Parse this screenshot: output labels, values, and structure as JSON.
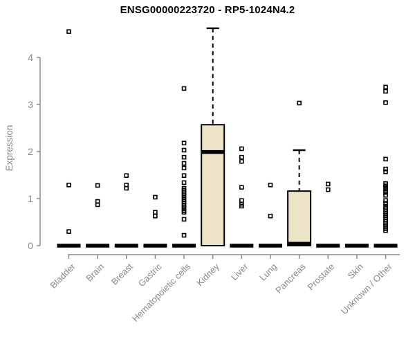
{
  "chart_data": {
    "type": "box",
    "title": "ENSG00000223720 - RP5-1024N4.2",
    "ylabel": "Expression",
    "xlabel": "",
    "ylim": [
      0,
      4.7
    ],
    "yticks": [
      0,
      1,
      2,
      3,
      4
    ],
    "grid": false,
    "legend": "none",
    "categories": [
      "Bladder",
      "Brain",
      "Breast",
      "Gastric",
      "Hematopoietic cells",
      "Kidney",
      "Liver",
      "Lung",
      "Pancreas",
      "Prostate",
      "Skin",
      "Unknown / Other"
    ],
    "boxes": [
      {
        "category": "Bladder",
        "q1": 0,
        "median": 0,
        "q3": 0,
        "whisker_low": 0,
        "whisker_high": 0,
        "outliers": [
          4.55,
          1.29,
          0.3
        ]
      },
      {
        "category": "Brain",
        "q1": 0,
        "median": 0,
        "q3": 0,
        "whisker_low": 0,
        "whisker_high": 0,
        "outliers": [
          1.28,
          0.94,
          0.87
        ]
      },
      {
        "category": "Breast",
        "q1": 0,
        "median": 0,
        "q3": 0,
        "whisker_low": 0,
        "whisker_high": 0,
        "outliers": [
          1.49,
          1.29,
          1.22
        ]
      },
      {
        "category": "Gastric",
        "q1": 0,
        "median": 0,
        "q3": 0,
        "whisker_low": 0,
        "whisker_high": 0,
        "outliers": [
          1.03,
          0.71,
          0.63
        ]
      },
      {
        "category": "Hematopoietic cells",
        "q1": 0,
        "median": 0,
        "q3": 0,
        "whisker_low": 0,
        "whisker_high": 0,
        "outliers": [
          3.34,
          2.18,
          2.03,
          1.88,
          1.75,
          1.65,
          1.49,
          1.34,
          1.22,
          1.18,
          1.14,
          1.1,
          1.06,
          1.02,
          0.98,
          0.94,
          0.9,
          0.86,
          0.82,
          0.78,
          0.74,
          0.71,
          0.56,
          0.22
        ]
      },
      {
        "category": "Kidney",
        "q1": 0,
        "median": 1.99,
        "q3": 2.57,
        "whisker_low": 0,
        "whisker_high": 4.62,
        "outliers": []
      },
      {
        "category": "Liver",
        "q1": 0,
        "median": 0,
        "q3": 0,
        "whisker_low": 0,
        "whisker_high": 0,
        "outliers": [
          2.06,
          1.88,
          1.79,
          1.24,
          0.96,
          0.88,
          0.84
        ]
      },
      {
        "category": "Lung",
        "q1": 0,
        "median": 0,
        "q3": 0,
        "whisker_low": 0,
        "whisker_high": 0,
        "outliers": [
          1.29,
          0.63
        ]
      },
      {
        "category": "Pancreas",
        "q1": 0,
        "median": 0.04,
        "q3": 1.16,
        "whisker_low": 0,
        "whisker_high": 2.03,
        "outliers": [
          3.03
        ]
      },
      {
        "category": "Prostate",
        "q1": 0,
        "median": 0,
        "q3": 0,
        "whisker_low": 0,
        "whisker_high": 0,
        "outliers": [
          1.31,
          1.19
        ]
      },
      {
        "category": "Skin",
        "q1": 0,
        "median": 0,
        "q3": 0,
        "whisker_low": 0,
        "whisker_high": 0,
        "outliers": []
      },
      {
        "category": "Unknown / Other",
        "q1": 0,
        "median": 0,
        "q3": 0,
        "whisker_low": 0,
        "whisker_high": 0,
        "outliers": [
          3.37,
          3.28,
          3.04,
          1.84,
          1.63,
          1.57,
          1.32,
          1.27,
          1.22,
          1.17,
          1.13,
          1.07,
          0.96,
          0.9,
          0.84,
          0.8,
          0.76,
          0.72,
          0.68,
          0.64,
          0.6,
          0.56,
          0.52,
          0.48,
          0.44,
          0.4,
          0.36,
          0.32
        ]
      }
    ],
    "colors": {
      "box_fill": "#EDE4C8",
      "box_stroke": "#000000",
      "median": "#000000",
      "whisker": "#000000",
      "outlier": "#000000",
      "axis": "#8A8A8A",
      "tick_label": "#8A8A8A",
      "title": "#000000"
    }
  }
}
